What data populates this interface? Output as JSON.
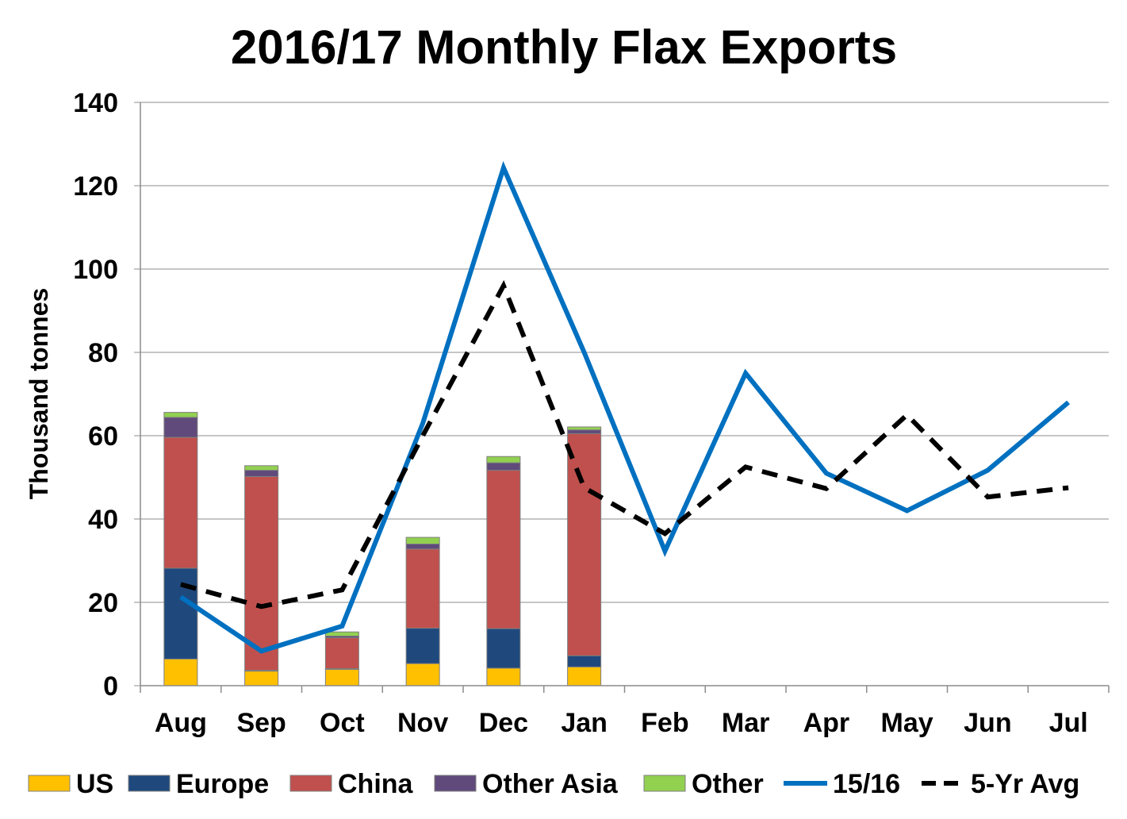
{
  "chart_data": {
    "type": "bar",
    "title": "2016/17 Monthly Flax Exports",
    "ylabel": "Thousand tonnes",
    "xlabel": "",
    "ylim": [
      0,
      140
    ],
    "yticks": [
      0,
      20,
      40,
      60,
      80,
      100,
      120,
      140
    ],
    "grid": true,
    "legend_position": "bottom",
    "categories": [
      "Aug",
      "Sep",
      "Oct",
      "Nov",
      "Dec",
      "Jan",
      "Feb",
      "Mar",
      "Apr",
      "May",
      "Jun",
      "Jul"
    ],
    "stacked_bars": [
      {
        "name": "US",
        "color": "#FFC000",
        "values": [
          6.4,
          3.5,
          3.9,
          5.3,
          4.2,
          4.5,
          null,
          null,
          null,
          null,
          null,
          null
        ]
      },
      {
        "name": "Europe",
        "color": "#1F497D",
        "values": [
          21.8,
          0.2,
          0.2,
          8.5,
          9.5,
          2.7,
          null,
          null,
          null,
          null,
          null,
          null
        ]
      },
      {
        "name": "China",
        "color": "#C0504D",
        "values": [
          31.4,
          46.5,
          7.4,
          19.0,
          38.0,
          53.3,
          null,
          null,
          null,
          null,
          null,
          null
        ]
      },
      {
        "name": "Other Asia",
        "color": "#604A7B",
        "values": [
          4.8,
          1.5,
          0.4,
          1.2,
          1.8,
          0.9,
          null,
          null,
          null,
          null,
          null,
          null
        ]
      },
      {
        "name": "Other",
        "color": "#92D050",
        "values": [
          1.2,
          1.1,
          1.0,
          1.6,
          1.5,
          0.7,
          null,
          null,
          null,
          null,
          null,
          null
        ]
      }
    ],
    "lines": [
      {
        "name": "15/16",
        "color": "#0070C0",
        "style": "solid",
        "values": [
          21.3,
          8.3,
          14.3,
          63.0,
          124.3,
          80.0,
          32.3,
          75.0,
          51.0,
          42.0,
          51.7,
          68.0
        ]
      },
      {
        "name": "5-Yr Avg",
        "color": "#000000",
        "style": "dashed",
        "values": [
          24.3,
          19.0,
          23.0,
          60.0,
          96.0,
          47.5,
          36.5,
          52.5,
          47.3,
          65.0,
          45.3,
          47.5
        ]
      }
    ]
  }
}
